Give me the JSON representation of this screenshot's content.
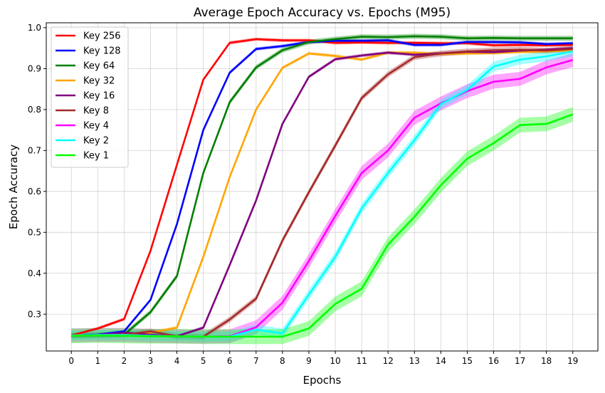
{
  "chart_data": {
    "type": "line",
    "title": "Average Epoch Accuracy vs. Epochs (M95)",
    "xlabel": "Epochs",
    "ylabel": "Epoch Accuracy",
    "x": [
      0,
      1,
      2,
      3,
      4,
      5,
      6,
      7,
      8,
      9,
      10,
      11,
      12,
      13,
      14,
      15,
      16,
      17,
      18,
      19
    ],
    "xlim": [
      -0.95,
      19.95
    ],
    "ylim": [
      0.21,
      1.012
    ],
    "yticks": [
      0.3,
      0.4,
      0.5,
      0.6,
      0.7,
      0.8,
      0.9,
      1.0
    ],
    "ytick_labels": [
      "0.3",
      "0.4",
      "0.5",
      "0.6",
      "0.7",
      "0.8",
      "0.9",
      "1.0"
    ],
    "grid": true,
    "legend_position": "top-left",
    "series": [
      {
        "name": "Key 256",
        "color": "#ff0000",
        "band": 0.004,
        "values": [
          0.248,
          0.265,
          0.288,
          0.455,
          0.665,
          0.873,
          0.963,
          0.972,
          0.969,
          0.969,
          0.963,
          0.964,
          0.963,
          0.963,
          0.962,
          0.962,
          0.957,
          0.958,
          0.957,
          0.958
        ]
      },
      {
        "name": "Key 128",
        "color": "#0000ff",
        "band": 0.004,
        "values": [
          0.248,
          0.25,
          0.258,
          0.335,
          0.52,
          0.75,
          0.89,
          0.948,
          0.955,
          0.965,
          0.968,
          0.968,
          0.969,
          0.958,
          0.958,
          0.965,
          0.965,
          0.964,
          0.96,
          0.962
        ]
      },
      {
        "name": "Key 64",
        "color": "#008000",
        "band": 0.006,
        "values": [
          0.248,
          0.249,
          0.25,
          0.305,
          0.393,
          0.645,
          0.818,
          0.903,
          0.945,
          0.965,
          0.972,
          0.978,
          0.977,
          0.979,
          0.978,
          0.974,
          0.975,
          0.974,
          0.974,
          0.974
        ]
      },
      {
        "name": "Key 32",
        "color": "#ffa500",
        "band": 0.004,
        "values": [
          0.248,
          0.249,
          0.25,
          0.255,
          0.267,
          0.44,
          0.635,
          0.8,
          0.902,
          0.937,
          0.931,
          0.922,
          0.939,
          0.939,
          0.936,
          0.937,
          0.938,
          0.941,
          0.942,
          0.945
        ]
      },
      {
        "name": "Key 16",
        "color": "#800080",
        "band": 0.004,
        "values": [
          0.248,
          0.249,
          0.255,
          0.25,
          0.246,
          0.267,
          0.42,
          0.578,
          0.765,
          0.88,
          0.923,
          0.932,
          0.939,
          0.934,
          0.937,
          0.941,
          0.94,
          0.944,
          0.946,
          0.95
        ]
      },
      {
        "name": "Key 8",
        "color": "#a52a2a",
        "band": 0.007,
        "values": [
          0.248,
          0.249,
          0.25,
          0.258,
          0.246,
          0.245,
          0.287,
          0.338,
          0.48,
          0.598,
          0.712,
          0.828,
          0.886,
          0.928,
          0.937,
          0.942,
          0.945,
          0.946,
          0.944,
          0.948
        ]
      },
      {
        "name": "Key 4",
        "color": "#ff00ff",
        "band": 0.017,
        "values": [
          0.248,
          0.249,
          0.249,
          0.247,
          0.246,
          0.245,
          0.246,
          0.268,
          0.328,
          0.43,
          0.54,
          0.645,
          0.7,
          0.78,
          0.815,
          0.845,
          0.868,
          0.875,
          0.903,
          0.921
        ]
      },
      {
        "name": "Key 2",
        "color": "#00ffff",
        "band": 0.012,
        "values": [
          0.248,
          0.249,
          0.249,
          0.247,
          0.246,
          0.245,
          0.245,
          0.262,
          0.253,
          0.348,
          0.44,
          0.558,
          0.645,
          0.725,
          0.813,
          0.848,
          0.905,
          0.922,
          0.93,
          0.942
        ]
      },
      {
        "name": "Key 1",
        "color": "#00ff00",
        "band": 0.018,
        "values": [
          0.247,
          0.248,
          0.247,
          0.246,
          0.246,
          0.245,
          0.245,
          0.245,
          0.245,
          0.265,
          0.325,
          0.362,
          0.47,
          0.538,
          0.615,
          0.68,
          0.718,
          0.762,
          0.765,
          0.788
        ]
      }
    ]
  }
}
